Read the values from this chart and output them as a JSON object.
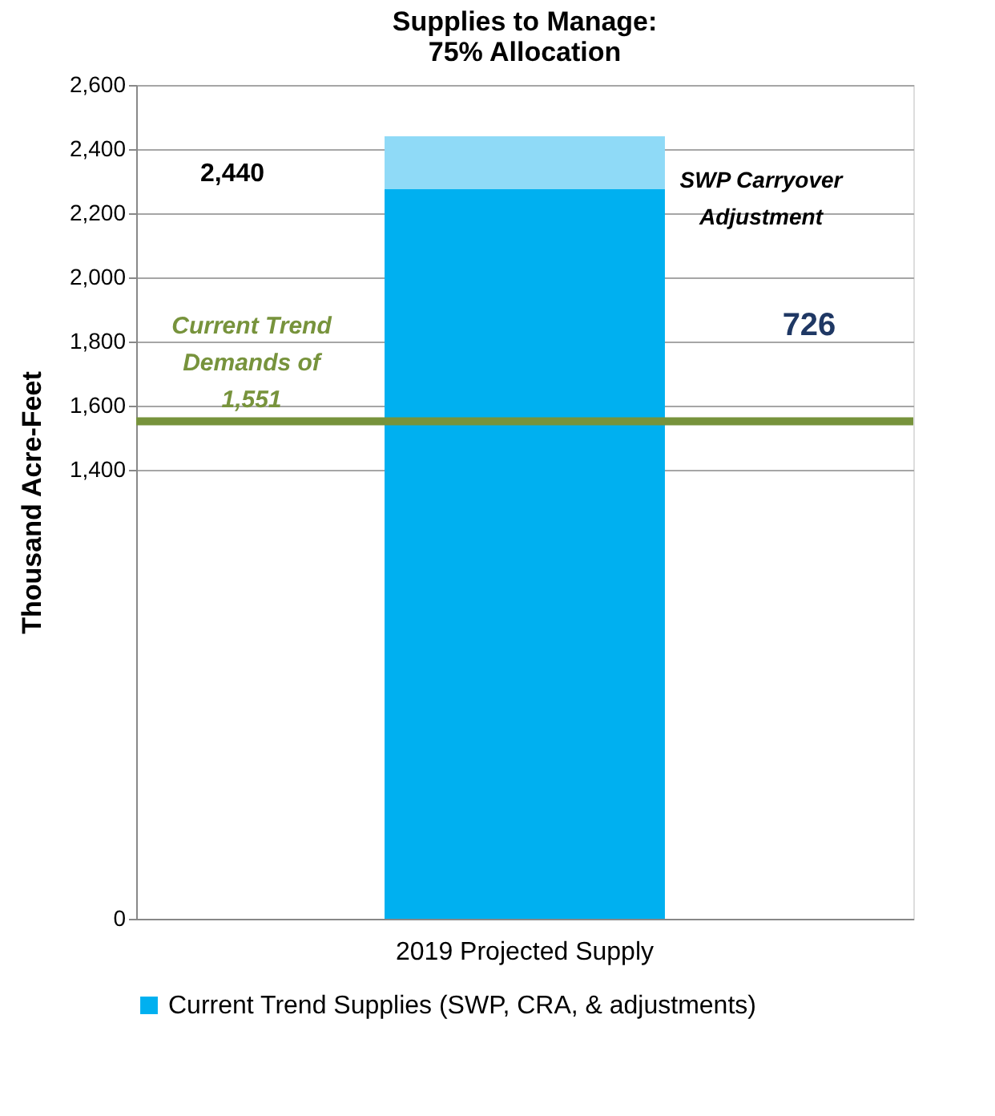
{
  "chart_data": {
    "type": "bar",
    "title": "Supplies to Manage: 75% Allocation",
    "ylabel": "Thousand Acre-Feet",
    "categories": [
      "2019 Projected Supply"
    ],
    "stacked": true,
    "series": [
      {
        "name": "Current Trend Supplies (SWP, CRA, & adjustments)",
        "color": "#00b0f0",
        "values": [
          2275
        ]
      },
      {
        "color": "#8fdaf7",
        "values": [
          165
        ]
      }
    ],
    "ylim": [
      0,
      2600
    ],
    "yticks": [
      0,
      {
        "value": 1400,
        "label": "1,400"
      },
      {
        "value": 1600,
        "label": "1,600"
      },
      {
        "value": 1800,
        "label": "1,800"
      },
      {
        "value": 2000,
        "label": "2,000"
      },
      {
        "value": 2200,
        "label": "2,200"
      },
      {
        "value": 2400,
        "label": "2,400"
      },
      {
        "value": 2600,
        "label": "2,600"
      }
    ],
    "grid": "y",
    "legend": "bottom",
    "ref_lines": [
      {
        "axis": "y",
        "value": 1551,
        "label": "Current Trend Demands of 1,551",
        "color": "#77933c"
      }
    ],
    "annotations": [
      "2,440",
      "SWP Carryover Adjustment",
      "726"
    ]
  }
}
